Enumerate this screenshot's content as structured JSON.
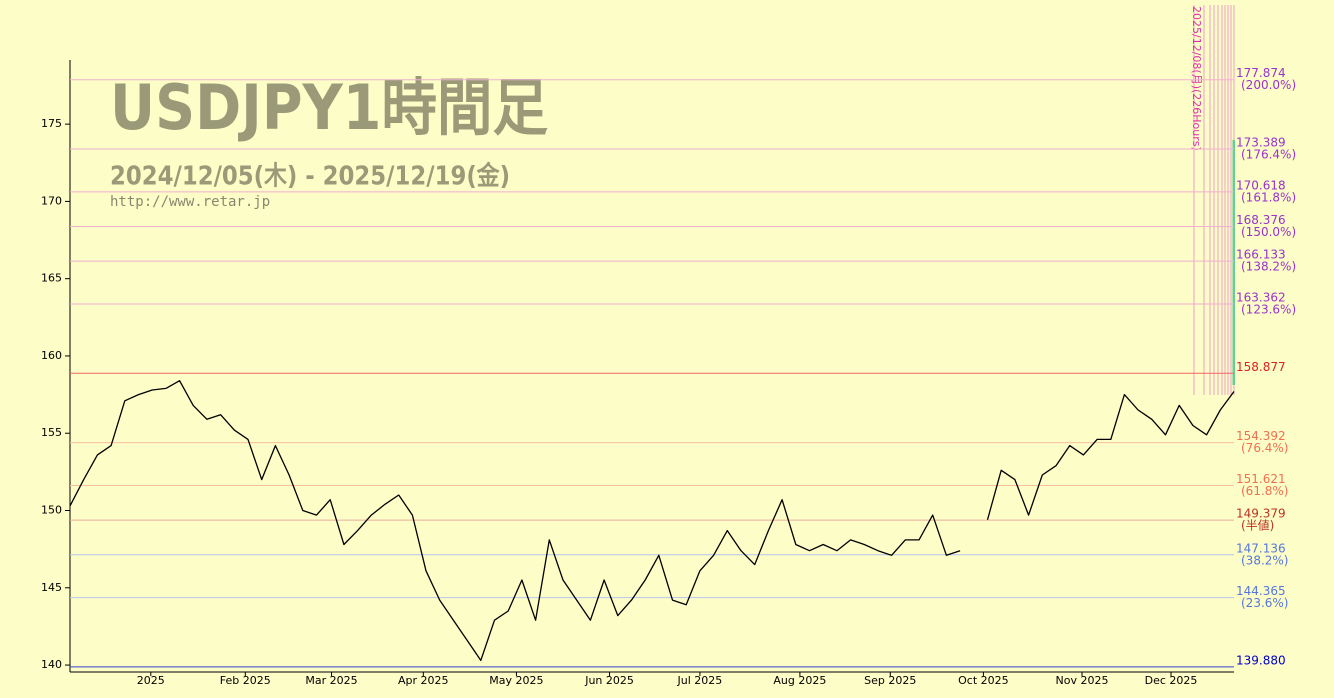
{
  "chart_data": {
    "type": "line",
    "title": "USDJPY1時間足",
    "subtitle": "2024/12/05(木) - 2025/12/19(金)",
    "source": "http://www.retar.jp",
    "annotation": "2025/12/08(月)(226Hours)",
    "color": "#000000",
    "values": [
      150.3,
      152.0,
      153.6,
      154.2,
      157.1,
      157.5,
      157.8,
      157.9,
      158.4,
      156.8,
      155.9,
      156.2,
      155.2,
      154.6,
      152.0,
      154.2,
      152.3,
      150.0,
      149.7,
      150.7,
      147.8,
      148.7,
      149.7,
      150.4,
      151.0,
      149.7,
      146.1,
      144.2,
      142.9,
      141.6,
      140.3,
      142.9,
      143.5,
      145.5,
      142.9,
      148.1,
      145.5,
      144.2,
      142.9,
      145.5,
      143.2,
      144.2,
      145.5,
      147.1,
      144.2,
      143.9,
      146.1,
      147.1,
      148.7,
      147.4,
      146.5,
      148.7,
      150.7,
      147.8,
      147.4,
      147.8,
      147.4,
      148.1,
      147.8,
      147.4,
      147.1,
      148.1,
      148.1,
      149.7,
      147.1,
      147.4,
      null,
      149.4,
      152.6,
      152.0,
      149.7,
      152.3,
      152.9,
      154.2,
      153.6,
      154.6,
      154.6,
      157.5,
      156.5,
      155.9,
      154.9,
      156.8,
      155.5,
      154.9,
      156.5,
      157.7
    ],
    "xlim": [
      0,
      85
    ],
    "xticks": [
      {
        "value": 5.9,
        "label": "2025"
      },
      {
        "value": 12.8,
        "label": "Feb 2025"
      },
      {
        "value": 19.1,
        "label": "Mar 2025"
      },
      {
        "value": 25.8,
        "label": "Apr 2025"
      },
      {
        "value": 32.6,
        "label": "May 2025"
      },
      {
        "value": 39.4,
        "label": "Jun 2025"
      },
      {
        "value": 46.0,
        "label": "Jul 2025"
      },
      {
        "value": 53.3,
        "label": "Aug 2025"
      },
      {
        "value": 59.9,
        "label": "Sep 2025"
      },
      {
        "value": 66.7,
        "label": "Oct 2025"
      },
      {
        "value": 73.9,
        "label": "Nov 2025"
      },
      {
        "value": 80.4,
        "label": "Dec 2025"
      }
    ],
    "ylim": [
      139.55,
      179.15
    ],
    "yticks": [
      140,
      145,
      150,
      155,
      160,
      165,
      170,
      175
    ],
    "grid": false,
    "levels": [
      {
        "value": 177.874,
        "percent": "(200.0%)",
        "color": "#9933cc",
        "line_color": "#f0b0d0"
      },
      {
        "value": 173.389,
        "percent": "(176.4%)",
        "color": "#9933cc",
        "line_color": "#f0b0d0"
      },
      {
        "value": 170.618,
        "percent": "(161.8%)",
        "color": "#9933cc",
        "line_color": "#f0b0d0"
      },
      {
        "value": 168.376,
        "percent": "(150.0%)",
        "color": "#9933cc",
        "line_color": "#f0b0d0"
      },
      {
        "value": 166.133,
        "percent": "(138.2%)",
        "color": "#9933cc",
        "line_color": "#f0b0d0"
      },
      {
        "value": 163.362,
        "percent": "(123.6%)",
        "color": "#9933cc",
        "line_color": "#f0b0d0"
      },
      {
        "value": 158.877,
        "color": "#dd2222",
        "line_color": "#ee6666"
      },
      {
        "value": 154.392,
        "percent": "(76.4%)",
        "color": "#f07050",
        "line_color": "#f5c0a0"
      },
      {
        "value": 151.621,
        "percent": "(61.8%)",
        "color": "#f07050",
        "line_color": "#f5c0a0"
      },
      {
        "value": 149.379,
        "percent": "(半値)",
        "color": "#bb3322",
        "line_color": "#e8b0a0"
      },
      {
        "value": 147.136,
        "percent": "(38.2%)",
        "color": "#5577dd",
        "line_color": "#b8c4ee"
      },
      {
        "value": 144.365,
        "percent": "(23.6%)",
        "color": "#5577dd",
        "line_color": "#b8c4ee"
      },
      {
        "value": 139.88,
        "value_label": "139.880",
        "color": "#0000cc",
        "line_color": "#3344cc"
      }
    ]
  }
}
